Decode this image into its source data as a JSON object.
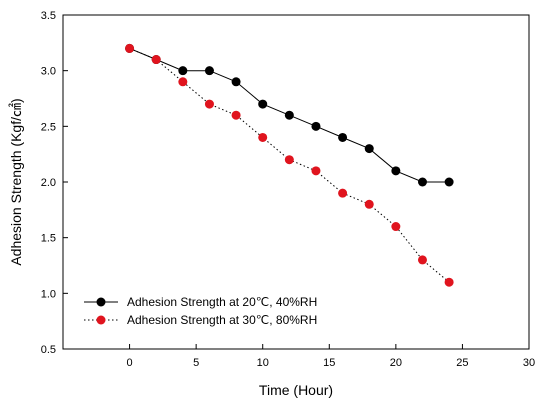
{
  "chart_data": {
    "type": "line",
    "title": "",
    "xlabel": "Time (Hour)",
    "ylabel": "Adhesion Strength (Kgf/㎠)",
    "xlim": [
      -5,
      30
    ],
    "ylim": [
      0.5,
      3.5
    ],
    "xticks": [
      "0",
      "5",
      "10",
      "15",
      "20",
      "25",
      "30"
    ],
    "yticks": [
      "0.5",
      "1.0",
      "1.5",
      "2.0",
      "2.5",
      "3.0",
      "3.5"
    ],
    "grid": false,
    "legend_position": "bottom-left",
    "series": [
      {
        "name": "Adhesion Strength at 20℃, 40%RH",
        "color": "#000000",
        "line_style": "solid",
        "marker": "circle",
        "x": [
          0,
          2,
          4,
          6,
          8,
          10,
          12,
          14,
          16,
          18,
          20,
          22,
          24
        ],
        "y": [
          3.2,
          3.1,
          3.0,
          3.0,
          2.9,
          2.7,
          2.6,
          2.5,
          2.4,
          2.3,
          2.1,
          2.0,
          2.0
        ]
      },
      {
        "name": "Adhesion Strength at 30℃, 80%RH",
        "color": "#e0141e",
        "line_style": "dotted",
        "marker": "circle",
        "x": [
          0,
          2,
          4,
          6,
          8,
          10,
          12,
          14,
          16,
          18,
          20,
          22,
          24
        ],
        "y": [
          3.2,
          3.1,
          2.9,
          2.7,
          2.6,
          2.4,
          2.2,
          2.1,
          1.9,
          1.8,
          1.6,
          1.3,
          1.1
        ]
      }
    ]
  }
}
